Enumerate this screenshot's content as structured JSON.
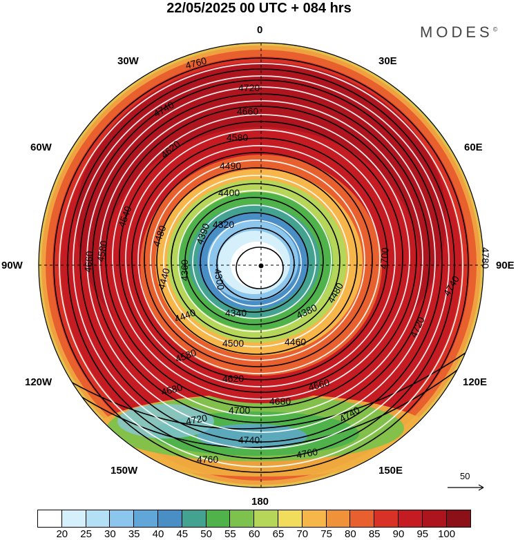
{
  "header": {
    "title": "22/05/2025  00 UTC  + 084 hrs",
    "brand": "MODES",
    "brand_mark": "©"
  },
  "map_labels": {
    "lon_0": "0",
    "lon_30e": "30E",
    "lon_60e": "60E",
    "lon_90e": "90E",
    "lon_120e": "120E",
    "lon_150e": "150E",
    "lon_180": "180",
    "lon_150w": "150W",
    "lon_120w": "120W",
    "lon_90w": "90W",
    "lon_60w": "60W",
    "lon_30w": "30W"
  },
  "contours": {
    "labels": [
      "4760",
      "4740",
      "4720",
      "4660",
      "4580",
      "4620",
      "4490",
      "4400",
      "4320",
      "4390",
      "4300",
      "4360",
      "4440",
      "4480",
      "4540",
      "4580",
      "4660",
      "4700",
      "4740",
      "4780",
      "4720",
      "4660",
      "4680",
      "4740",
      "4760",
      "4620",
      "4580",
      "4500",
      "4460",
      "4380",
      "4340",
      "4440",
      "4480",
      "4720",
      "4700",
      "4680",
      "4760",
      "4740"
    ]
  },
  "vector_key": {
    "label": "50"
  },
  "colorbar": {
    "colors": [
      "#ffffff",
      "#d6f0fb",
      "#b4e0f6",
      "#8cc6ec",
      "#60a6d8",
      "#4a8ec6",
      "#44a290",
      "#4fb24a",
      "#7cc24c",
      "#b6d65a",
      "#f2dc5c",
      "#f6b64a",
      "#f0923a",
      "#e8602e",
      "#d83226",
      "#c41c22",
      "#ac141e",
      "#8c1018"
    ],
    "ticks": [
      "20",
      "25",
      "30",
      "35",
      "40",
      "45",
      "50",
      "55",
      "60",
      "65",
      "70",
      "75",
      "80",
      "85",
      "90",
      "95",
      "100"
    ]
  }
}
